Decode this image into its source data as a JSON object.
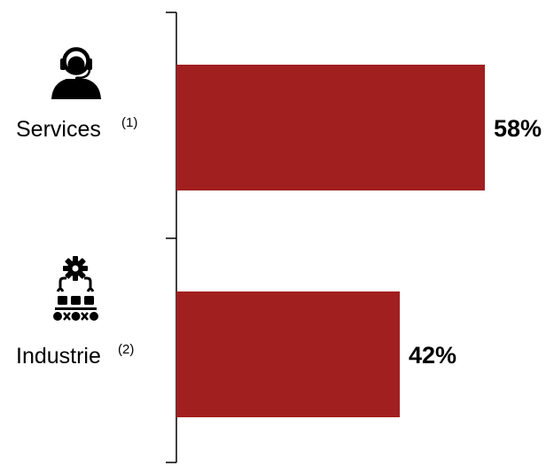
{
  "chart_data": {
    "type": "bar",
    "orientation": "horizontal",
    "categories": [
      "Services",
      "Industrie"
    ],
    "category_notes": [
      "(1)",
      "(2)"
    ],
    "category_icons": [
      "call-center-agent-icon",
      "factory-automation-icon"
    ],
    "values": [
      58,
      42
    ],
    "value_labels": [
      "58%",
      "42%"
    ],
    "xlim": [
      0,
      100
    ],
    "bar_color": "#a21f20",
    "grid": false,
    "legend": "none"
  }
}
